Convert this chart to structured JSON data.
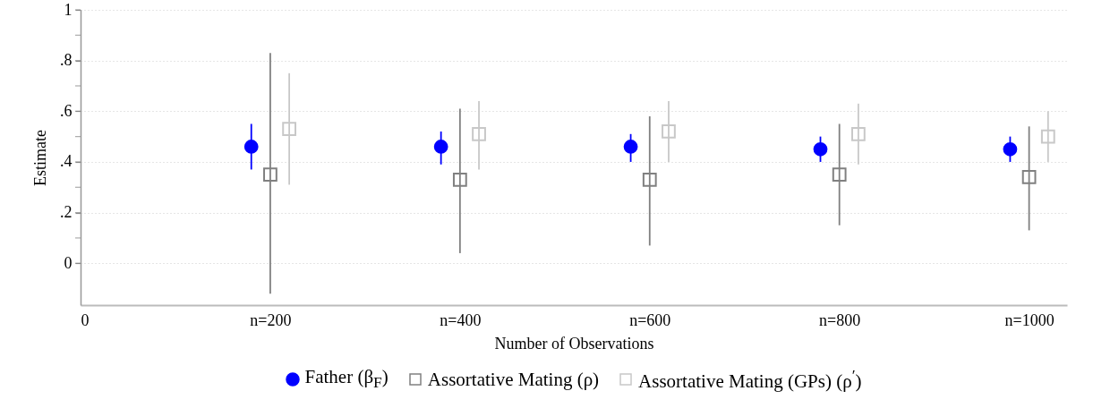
{
  "chart_data": {
    "type": "scatter",
    "xlabel": "Number of Observations",
    "ylabel": "Estimate",
    "xlim": [
      0,
      1040
    ],
    "xticks": [
      0,
      {
        "value": 200,
        "label": "n=200"
      },
      {
        "value": 400,
        "label": "n=400"
      },
      {
        "value": 600,
        "label": "n=600"
      },
      {
        "value": 800,
        "label": "n=800"
      },
      {
        "value": 1000,
        "label": "n=1000"
      }
    ],
    "ylim": [
      -0.165,
      1
    ],
    "yticks": [
      0,
      {
        "value": 0.1,
        "label": null
      },
      {
        "value": 0.2,
        "label": ".2"
      },
      {
        "value": 0.3,
        "label": null
      },
      {
        "value": 0.4,
        "label": ".4"
      },
      {
        "value": 0.5,
        "label": null
      },
      {
        "value": 0.6,
        "label": ".6"
      },
      {
        "value": 0.7,
        "label": null
      },
      {
        "value": 0.8,
        "label": ".8"
      },
      {
        "value": 0.9,
        "label": null
      },
      1
    ],
    "grid": "y",
    "legend": "bottom",
    "series": [
      {
        "name": "Father (β$_{F}$)",
        "color": "#0000ff",
        "marker": "circle",
        "x": [
          180,
          380,
          580,
          780,
          980
        ],
        "values": [
          0.46,
          0.46,
          0.46,
          0.45,
          0.45
        ],
        "errors": [
          [
            0.37,
            0.55
          ],
          [
            0.39,
            0.52
          ],
          [
            0.4,
            0.51
          ],
          [
            0.4,
            0.5
          ],
          [
            0.4,
            0.5
          ]
        ]
      },
      {
        "name": "Assortative Mating (ρ)",
        "color": "#808080",
        "marker": "square",
        "x": [
          200,
          400,
          600,
          800,
          1000
        ],
        "values": [
          0.35,
          0.33,
          0.33,
          0.35,
          0.34
        ],
        "errors": [
          [
            -0.12,
            0.83
          ],
          [
            0.04,
            0.61
          ],
          [
            0.07,
            0.58
          ],
          [
            0.15,
            0.55
          ],
          [
            0.13,
            0.54
          ]
        ]
      },
      {
        "name": "Assortative Mating (GPs) (ρ$^{′}$)",
        "color": "#c8c8c8",
        "marker": "square",
        "x": [
          220,
          420,
          620,
          820,
          1020
        ],
        "values": [
          0.53,
          0.51,
          0.52,
          0.51,
          0.5
        ],
        "errors": [
          [
            0.31,
            0.75
          ],
          [
            0.37,
            0.64
          ],
          [
            0.4,
            0.64
          ],
          [
            0.39,
            0.63
          ],
          [
            0.4,
            0.6
          ]
        ]
      }
    ]
  }
}
